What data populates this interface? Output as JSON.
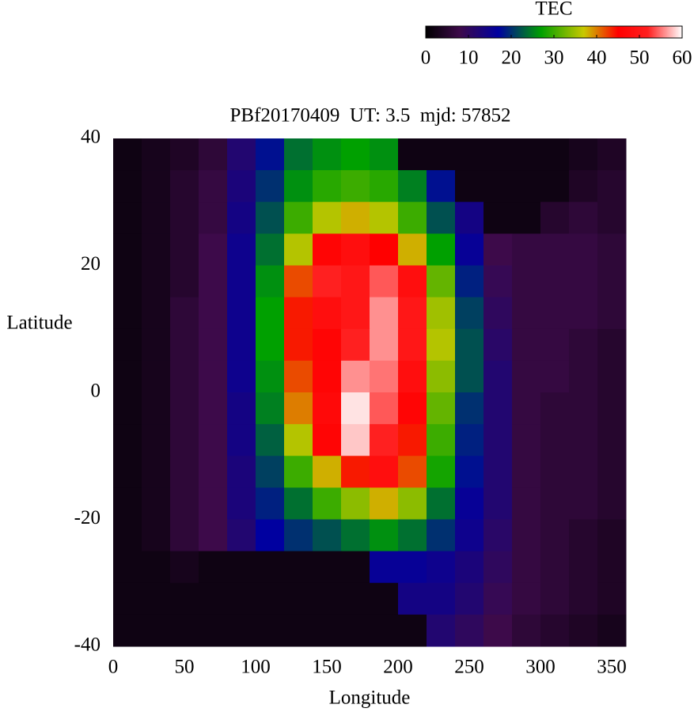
{
  "chart_data": {
    "type": "heatmap",
    "title": "PBf20170409  UT: 3.5  mjd: 57852",
    "xlabel": "Longitude",
    "ylabel": "Latitude",
    "xlim": [
      0,
      360
    ],
    "ylim": [
      -40,
      40
    ],
    "xticks": [
      0,
      50,
      100,
      150,
      200,
      250,
      300,
      350
    ],
    "yticks": [
      -40,
      -20,
      0,
      20,
      40
    ],
    "x": [
      10,
      30,
      50,
      70,
      90,
      110,
      130,
      150,
      170,
      190,
      210,
      230,
      250,
      270,
      290,
      310,
      330,
      350
    ],
    "y": [
      37.5,
      32.5,
      27.5,
      22.5,
      17.5,
      12.5,
      7.5,
      2.5,
      -2.5,
      -7.5,
      -12.5,
      -17.5,
      -22.5,
      -27.5,
      -32.5,
      -37.5
    ],
    "z": [
      [
        2,
        3,
        4,
        6,
        12,
        18,
        24,
        26,
        27,
        26,
        2,
        2,
        2,
        2,
        2,
        2,
        3,
        4
      ],
      [
        2,
        3,
        5,
        7,
        13,
        20,
        26,
        29,
        30,
        29,
        25,
        18,
        2,
        2,
        2,
        2,
        4,
        5
      ],
      [
        2,
        3,
        5,
        7,
        14,
        22,
        30,
        36,
        38,
        36,
        30,
        22,
        14,
        2,
        2,
        5,
        6,
        5
      ],
      [
        2,
        3,
        5,
        8,
        15,
        24,
        36,
        46,
        48,
        45,
        38,
        27,
        16,
        8,
        7,
        7,
        7,
        6
      ],
      [
        2,
        3,
        5,
        8,
        15,
        26,
        42,
        52,
        50,
        54,
        48,
        32,
        19,
        9,
        7,
        7,
        7,
        6
      ],
      [
        2,
        3,
        6,
        8,
        15,
        27,
        44,
        48,
        50,
        56,
        50,
        35,
        21,
        10,
        7,
        7,
        7,
        6
      ],
      [
        2,
        3,
        6,
        8,
        15,
        27,
        44,
        46,
        52,
        56,
        50,
        36,
        22,
        11,
        7,
        7,
        6,
        5
      ],
      [
        2,
        3,
        6,
        8,
        15,
        26,
        42,
        46,
        56,
        55,
        48,
        34,
        22,
        12,
        7,
        7,
        6,
        5
      ],
      [
        2,
        3,
        6,
        8,
        14,
        25,
        40,
        47,
        59,
        54,
        46,
        32,
        20,
        12,
        7,
        6,
        6,
        5
      ],
      [
        2,
        3,
        6,
        8,
        14,
        23,
        36,
        46,
        58,
        52,
        44,
        30,
        19,
        12,
        7,
        6,
        6,
        5
      ],
      [
        2,
        3,
        6,
        8,
        13,
        21,
        30,
        38,
        44,
        48,
        42,
        28,
        18,
        12,
        7,
        6,
        6,
        5
      ],
      [
        2,
        3,
        6,
        8,
        13,
        19,
        24,
        30,
        34,
        38,
        34,
        24,
        16,
        12,
        7,
        6,
        6,
        5
      ],
      [
        2,
        3,
        6,
        8,
        12,
        17,
        20,
        22,
        24,
        26,
        24,
        20,
        15,
        11,
        7,
        6,
        5,
        4
      ],
      [
        2,
        2,
        3,
        2,
        2,
        2,
        2,
        2,
        2,
        16,
        16,
        15,
        13,
        10,
        7,
        6,
        5,
        4
      ],
      [
        2,
        2,
        2,
        2,
        2,
        2,
        2,
        2,
        2,
        2,
        14,
        14,
        12,
        9,
        7,
        6,
        5,
        4
      ],
      [
        2,
        2,
        2,
        2,
        2,
        2,
        2,
        2,
        2,
        2,
        2,
        12,
        10,
        8,
        6,
        5,
        4,
        3
      ]
    ],
    "colorbar": {
      "title": "TEC",
      "lim": [
        0,
        60
      ],
      "ticks": [
        0,
        10,
        20,
        30,
        40,
        50,
        60
      ]
    },
    "colormap": [
      {
        "value": 0,
        "color": "#000000"
      },
      {
        "value": 8,
        "color": "#3d0a4a"
      },
      {
        "value": 17,
        "color": "#0000a0"
      },
      {
        "value": 27,
        "color": "#00a000"
      },
      {
        "value": 37,
        "color": "#c8c800"
      },
      {
        "value": 45,
        "color": "#ff0000"
      },
      {
        "value": 52,
        "color": "#ff2020"
      },
      {
        "value": 60,
        "color": "#ffffff"
      }
    ]
  }
}
